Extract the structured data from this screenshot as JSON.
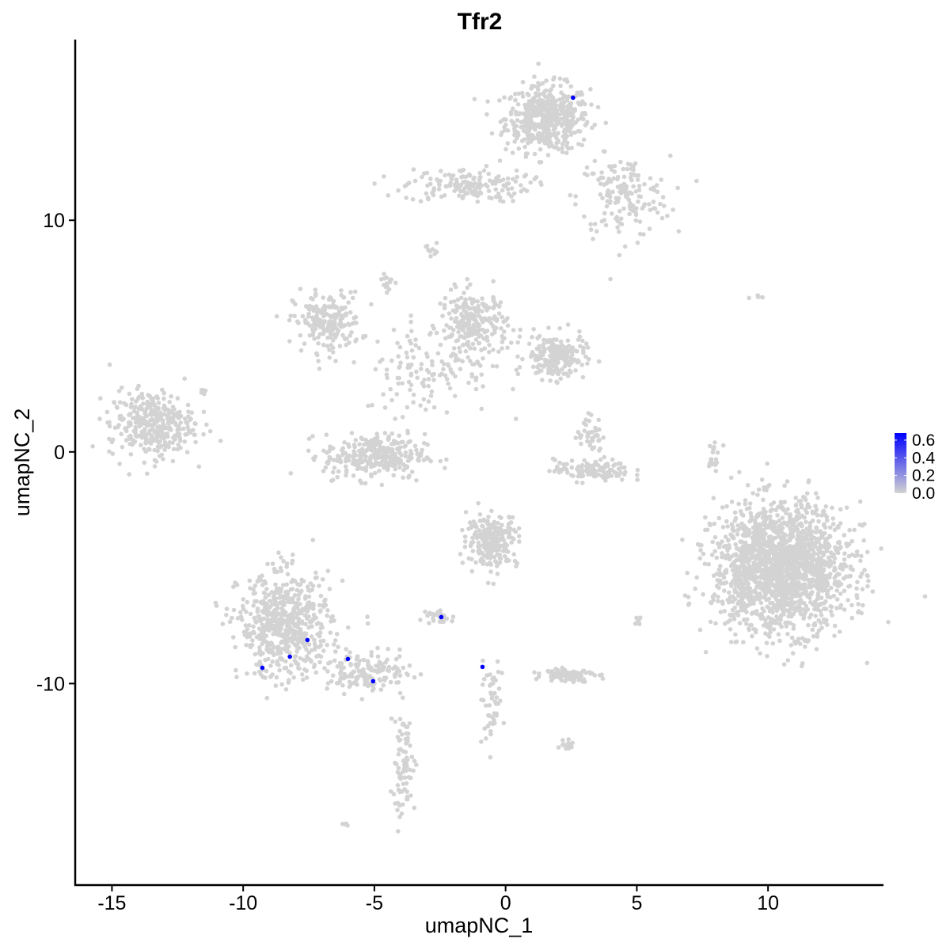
{
  "chart_data": {
    "type": "scatter",
    "title": "Tfr2",
    "xlabel": "umapNC_1",
    "ylabel": "umapNC_2",
    "xlim": [
      -16.4,
      14.4
    ],
    "ylim": [
      -18.7,
      17.8
    ],
    "xticks": [
      "-15",
      "-10",
      "-5",
      "0",
      "5",
      "10"
    ],
    "xtick_values": [
      -15,
      -10,
      -5,
      0,
      5,
      10
    ],
    "yticks": [
      "-10",
      "0",
      "10"
    ],
    "ytick_values": [
      -10,
      0,
      10
    ],
    "grid": false,
    "point_color_low": "#d3d3d3",
    "point_color_high": "#0000ff",
    "legend": {
      "position": "right",
      "type": "colorbar",
      "range": [
        0,
        0.68
      ],
      "ticks": [
        "0.0",
        "0.2",
        "0.4",
        "0.6"
      ],
      "tick_values": [
        0,
        0.2,
        0.4,
        0.6
      ]
    },
    "background_clusters": [
      {
        "x": 1.6,
        "y": 14.4,
        "sx": 1.0,
        "sy": 0.9,
        "n": 500,
        "value": 0
      },
      {
        "x": 4.5,
        "y": 11.0,
        "sx": 1.1,
        "sy": 1.1,
        "n": 160,
        "value": 0
      },
      {
        "x": -1.5,
        "y": 11.5,
        "sx": 1.5,
        "sy": 0.45,
        "n": 160,
        "value": 0
      },
      {
        "x": -2.8,
        "y": 8.8,
        "sx": 0.15,
        "sy": 0.2,
        "n": 10,
        "value": 0
      },
      {
        "x": -6.8,
        "y": 5.6,
        "sx": 0.8,
        "sy": 0.8,
        "n": 200,
        "value": 0
      },
      {
        "x": -1.2,
        "y": 5.5,
        "sx": 0.8,
        "sy": 0.9,
        "n": 250,
        "value": 0
      },
      {
        "x": 1.9,
        "y": 4.1,
        "sx": 0.7,
        "sy": 0.6,
        "n": 200,
        "value": 0
      },
      {
        "x": -5.0,
        "y": -0.2,
        "sx": 1.2,
        "sy": 0.6,
        "n": 300,
        "value": 0
      },
      {
        "x": -3.0,
        "y": 3.5,
        "sx": 1.5,
        "sy": 1.2,
        "n": 120,
        "value": 0
      },
      {
        "x": -13.5,
        "y": 1.2,
        "sx": 1.0,
        "sy": 0.9,
        "n": 350,
        "value": 0
      },
      {
        "x": 3.3,
        "y": -0.8,
        "sx": 0.9,
        "sy": 0.3,
        "n": 120,
        "value": 0
      },
      {
        "x": 3.2,
        "y": 0.8,
        "sx": 0.3,
        "sy": 0.5,
        "n": 40,
        "value": 0
      },
      {
        "x": 10.5,
        "y": -5.0,
        "sx": 1.6,
        "sy": 1.7,
        "n": 1800,
        "value": 0
      },
      {
        "x": -0.5,
        "y": -3.8,
        "sx": 0.6,
        "sy": 0.7,
        "n": 250,
        "value": 0
      },
      {
        "x": -8.4,
        "y": -7.5,
        "sx": 1.1,
        "sy": 1.4,
        "n": 600,
        "value": 0
      },
      {
        "x": -5.2,
        "y": -9.5,
        "sx": 1.0,
        "sy": 0.5,
        "n": 150,
        "value": 0
      },
      {
        "x": -3.9,
        "y": -13.5,
        "sx": 0.3,
        "sy": 1.5,
        "n": 80,
        "value": 0
      },
      {
        "x": -2.5,
        "y": -7.1,
        "sx": 0.3,
        "sy": 0.2,
        "n": 30,
        "value": 0
      },
      {
        "x": -0.6,
        "y": -10.9,
        "sx": 0.3,
        "sy": 1.0,
        "n": 50,
        "value": 0
      },
      {
        "x": 2.4,
        "y": -9.6,
        "sx": 0.6,
        "sy": 0.2,
        "n": 80,
        "value": 0
      },
      {
        "x": 2.3,
        "y": -12.6,
        "sx": 0.2,
        "sy": 0.15,
        "n": 15,
        "value": 0
      },
      {
        "x": 7.9,
        "y": -0.3,
        "sx": 0.15,
        "sy": 0.6,
        "n": 20,
        "value": 0
      },
      {
        "x": 9.5,
        "y": 6.7,
        "sx": 0.2,
        "sy": 0.05,
        "n": 5,
        "value": 0
      },
      {
        "x": -4.5,
        "y": 7.3,
        "sx": 0.15,
        "sy": 0.3,
        "n": 15,
        "value": 0
      },
      {
        "x": -11.6,
        "y": 2.6,
        "sx": 0.1,
        "sy": 0.1,
        "n": 10,
        "value": 0
      },
      {
        "x": -6.1,
        "y": -16.1,
        "sx": 0.1,
        "sy": 0.05,
        "n": 5,
        "value": 0
      },
      {
        "x": 5.0,
        "y": -7.3,
        "sx": 0.1,
        "sy": 0.2,
        "n": 10,
        "value": 0
      }
    ],
    "expressing_points": [
      {
        "x": 2.57,
        "y": 15.29,
        "value": 0.65
      },
      {
        "x": -2.45,
        "y": -7.13,
        "value": 0.65
      },
      {
        "x": -0.88,
        "y": -9.28,
        "value": 0.65
      },
      {
        "x": -9.27,
        "y": -9.32,
        "value": 0.65
      },
      {
        "x": -8.22,
        "y": -8.84,
        "value": 0.65
      },
      {
        "x": -7.55,
        "y": -8.12,
        "value": 0.65
      },
      {
        "x": -6.01,
        "y": -8.94,
        "value": 0.65
      },
      {
        "x": -5.05,
        "y": -9.9,
        "value": 0.65
      }
    ]
  }
}
